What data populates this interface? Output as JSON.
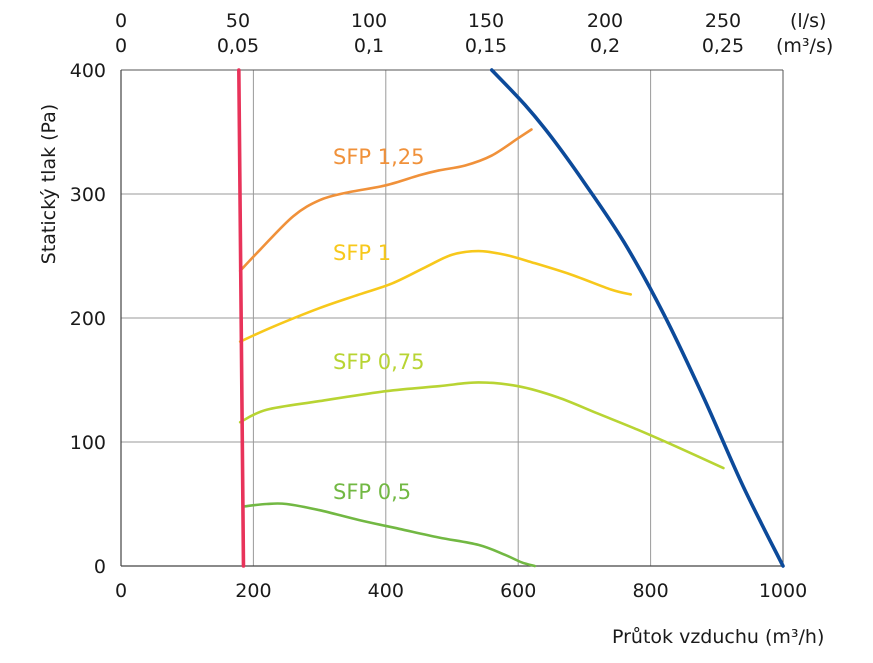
{
  "chart_data": {
    "type": "line",
    "xlabel": "Průtok vzduchu (m³/h)",
    "ylabel": "Statický tlak (Pa)",
    "xlim": [
      0,
      1000
    ],
    "ylim": [
      0,
      400
    ],
    "x_ticks": [
      "0",
      "200",
      "400",
      "600",
      "800",
      "1000"
    ],
    "y_ticks": [
      "0",
      "100",
      "200",
      "300",
      "400"
    ],
    "top_ticks_ls": [
      "0",
      "50",
      "100",
      "150",
      "200",
      "250"
    ],
    "top_ticks_m3s": [
      "0",
      "0,05",
      "0,1",
      "0,15",
      "0,2",
      "0,25"
    ],
    "top_unit_ls": "(l/s)",
    "top_unit_m3s": "(m³/s)",
    "grid": true,
    "series": [
      {
        "name": "SFP 1,25",
        "color": "#F0913A",
        "x": [
          180,
          210,
          260,
          300,
          340,
          400,
          450,
          480,
          520,
          560,
          600,
          620
        ],
        "y": [
          238,
          255,
          282,
          295,
          301,
          307,
          315,
          319,
          323,
          331,
          345,
          352
        ]
      },
      {
        "name": "SFP 1",
        "color": "#F7C81B",
        "x": [
          180,
          230,
          300,
          360,
          410,
          460,
          500,
          540,
          580,
          620,
          680,
          740,
          770
        ],
        "y": [
          181,
          193,
          208,
          219,
          228,
          241,
          251,
          254,
          251,
          245,
          235,
          223,
          219
        ]
      },
      {
        "name": "SFP 0,75",
        "color": "#B8D433",
        "x": [
          180,
          220,
          300,
          400,
          480,
          540,
          600,
          660,
          720,
          780,
          840,
          910
        ],
        "y": [
          116,
          126,
          133,
          141,
          145,
          148,
          145,
          136,
          123,
          110,
          96,
          79
        ]
      },
      {
        "name": "SFP 0,5",
        "color": "#72B843",
        "x": [
          185,
          220,
          250,
          300,
          360,
          420,
          480,
          540,
          580,
          605,
          625
        ],
        "y": [
          48,
          50,
          50,
          45,
          37,
          30,
          23,
          17,
          9,
          3,
          0
        ]
      },
      {
        "name": "",
        "color": "#0C4A9A",
        "x": [
          560,
          610,
          650,
          700,
          760,
          820,
          880,
          940,
          1000
        ],
        "y": [
          400,
          372,
          346,
          309,
          261,
          203,
          136,
          64,
          0
        ]
      },
      {
        "name": "",
        "color": "#E8335A",
        "x": [
          178,
          185
        ],
        "y": [
          400,
          0
        ]
      }
    ]
  }
}
